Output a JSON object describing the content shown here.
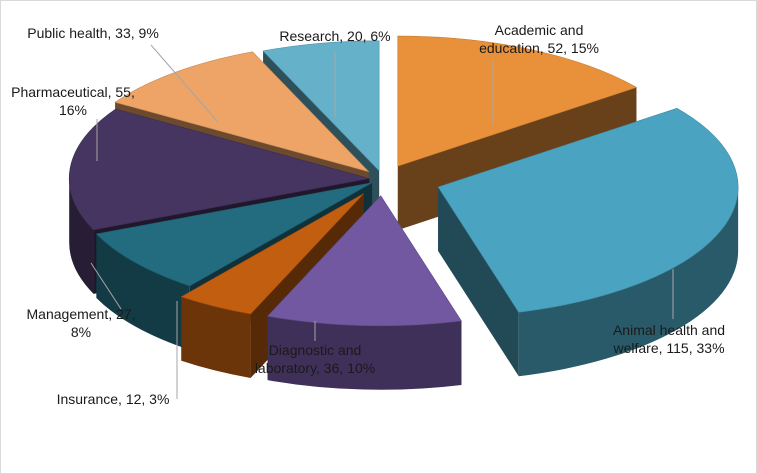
{
  "chart_data": {
    "type": "pie",
    "title": "",
    "slices": [
      {
        "category": "Academic and education",
        "value": 52,
        "percent": "15%",
        "label_lines": [
          "Academic and",
          "education, 52, 15%"
        ],
        "color": "#E8913A"
      },
      {
        "category": "Animal health and welfare",
        "value": 115,
        "percent": "33%",
        "label_lines": [
          "Animal health and",
          "welfare, 115, 33%"
        ],
        "color": "#4AA3C0"
      },
      {
        "category": "Diagnostic and laboratory",
        "value": 36,
        "percent": "10%",
        "label_lines": [
          "Diagnostic and",
          "laboratory, 36, 10%"
        ],
        "color": "#7257A1"
      },
      {
        "category": "Insurance",
        "value": 12,
        "percent": "3%",
        "label_lines": [
          "Insurance, 12, 3%"
        ],
        "color": "#C25E10"
      },
      {
        "category": "Management",
        "value": 27,
        "percent": "8%",
        "label_lines": [
          "Management, 27,",
          "8%"
        ],
        "color": "#236C80"
      },
      {
        "category": "Pharmaceutical",
        "value": 55,
        "percent": "16%",
        "label_lines": [
          "Pharmaceutical, 55,",
          "16%"
        ],
        "color": "#463461"
      },
      {
        "category": "Public health",
        "value": 33,
        "percent": "9%",
        "label_lines": [
          "Public health, 33, 9%"
        ],
        "color": "#EDA466"
      },
      {
        "category": "Research",
        "value": 20,
        "percent": "6%",
        "label_lines": [
          "Research, 20, 6%"
        ],
        "color": "#64B1C9"
      }
    ],
    "legend": "none",
    "style": "3d exploded pie"
  }
}
